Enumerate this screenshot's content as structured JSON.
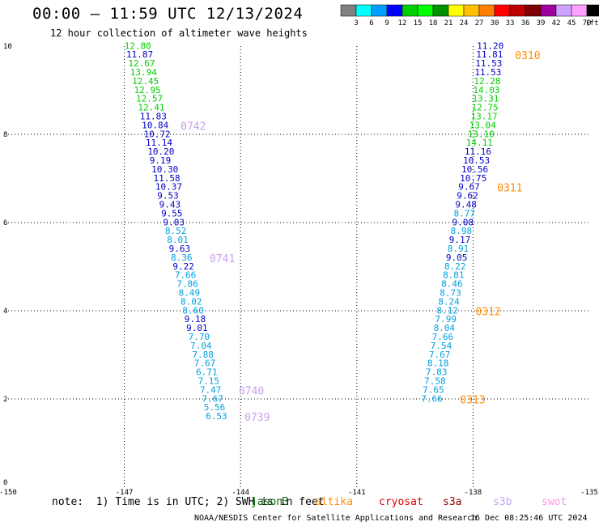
{
  "header": {
    "title": "00:00 – 11:59 UTC 12/13/2024",
    "subtitle": "12 hour collection of altimeter wave heights"
  },
  "colorbar": {
    "labels": [
      "3",
      "6",
      "9",
      "12",
      "15",
      "18",
      "21",
      "24",
      "27",
      "30",
      "33",
      "36",
      "39",
      "42",
      "45",
      "70"
    ],
    "unit": "(ft)",
    "colors": [
      "#808080",
      "#00ffff",
      "#00a0ff",
      "#0000ff",
      "#00d000",
      "#00ff00",
      "#009000",
      "#ffff00",
      "#ffc000",
      "#ff8000",
      "#ff0000",
      "#c00000",
      "#800000",
      "#a000a0",
      "#d0a0ff",
      "#ffa0ff",
      "#000000"
    ]
  },
  "footer": {
    "note": "note:  1) Time is in UTC; 2) SWH is in feet",
    "credit": "NOAA/NESDIS Center for Satellite Applications and Research",
    "timestamp": "16 Dec 08:25:46 UTC 2024",
    "satellites": [
      {
        "name": "jason3",
        "color": "#006400"
      },
      {
        "name": "altika",
        "color": "#ff8c00"
      },
      {
        "name": "cryosat",
        "color": "#e00000"
      },
      {
        "name": "s3a",
        "color": "#8b0000"
      },
      {
        "name": "s3b",
        "color": "#c8a0f0"
      },
      {
        "name": "swot",
        "color": "#ff90e0"
      }
    ]
  },
  "chart_data": {
    "type": "scatter",
    "xlim": [
      -150,
      -135
    ],
    "ylim": [
      0,
      10
    ],
    "x_ticks": [
      "-150",
      "-147",
      "-144",
      "-141",
      "-138",
      "-135"
    ],
    "y_ticks": [
      "0",
      "2",
      "4",
      "6",
      "8",
      "10"
    ],
    "grid": true,
    "tracks": [
      {
        "label_style": "west",
        "points": [
          {
            "x": -147.0,
            "y": 9.94,
            "v": "12.80",
            "c": "#00d000"
          },
          {
            "x": -146.95,
            "y": 9.74,
            "v": "11.87",
            "c": "#0000c8"
          },
          {
            "x": -146.9,
            "y": 9.54,
            "v": "12.67",
            "c": "#00d000"
          },
          {
            "x": -146.85,
            "y": 9.34,
            "v": "13.94",
            "c": "#00d000"
          },
          {
            "x": -146.8,
            "y": 9.14,
            "v": "12.45",
            "c": "#00d000"
          },
          {
            "x": -146.75,
            "y": 8.94,
            "v": "12.95",
            "c": "#00d000"
          },
          {
            "x": -146.7,
            "y": 8.74,
            "v": "12.57",
            "c": "#00d000"
          },
          {
            "x": -146.65,
            "y": 8.54,
            "v": "12.41",
            "c": "#00d000"
          },
          {
            "x": -146.6,
            "y": 8.34,
            "v": "11.83",
            "c": "#0000c8"
          },
          {
            "x": -146.55,
            "y": 8.14,
            "v": "10.84",
            "c": "#0000c8"
          },
          {
            "x": -146.5,
            "y": 7.94,
            "v": "10.72",
            "c": "#0000c8"
          },
          {
            "x": -146.45,
            "y": 7.74,
            "v": "11.14",
            "c": "#0000c8"
          },
          {
            "x": -146.4,
            "y": 7.54,
            "v": "10.20",
            "c": "#0000c8"
          },
          {
            "x": -146.35,
            "y": 7.34,
            "v": "9.19",
            "c": "#0000c8"
          },
          {
            "x": -146.3,
            "y": 7.14,
            "v": "10.30",
            "c": "#0000c8"
          },
          {
            "x": -146.25,
            "y": 6.94,
            "v": "11.58",
            "c": "#0000c8"
          },
          {
            "x": -146.2,
            "y": 6.74,
            "v": "10.37",
            "c": "#0000c8"
          },
          {
            "x": -146.15,
            "y": 6.54,
            "v": "9.53",
            "c": "#0000c8"
          },
          {
            "x": -146.1,
            "y": 6.34,
            "v": "9.43",
            "c": "#0000c8"
          },
          {
            "x": -146.05,
            "y": 6.14,
            "v": "9.55",
            "c": "#0000c8"
          },
          {
            "x": -146.0,
            "y": 5.94,
            "v": "9.03",
            "c": "#0000c8"
          },
          {
            "x": -145.95,
            "y": 5.74,
            "v": "8.52",
            "c": "#00a0e0"
          },
          {
            "x": -145.9,
            "y": 5.54,
            "v": "8.01",
            "c": "#00a0e0"
          },
          {
            "x": -145.85,
            "y": 5.34,
            "v": "9.63",
            "c": "#0000c8"
          },
          {
            "x": -145.8,
            "y": 5.14,
            "v": "8.36",
            "c": "#00a0e0"
          },
          {
            "x": -145.75,
            "y": 4.94,
            "v": "9.22",
            "c": "#0000c8"
          },
          {
            "x": -145.7,
            "y": 4.74,
            "v": "7.66",
            "c": "#00a0e0"
          },
          {
            "x": -145.65,
            "y": 4.54,
            "v": "7.86",
            "c": "#00a0e0"
          },
          {
            "x": -145.6,
            "y": 4.34,
            "v": "8.49",
            "c": "#00a0e0"
          },
          {
            "x": -145.55,
            "y": 4.14,
            "v": "8.02",
            "c": "#00a0e0"
          },
          {
            "x": -145.5,
            "y": 3.94,
            "v": "8.60",
            "c": "#00a0e0"
          },
          {
            "x": -145.45,
            "y": 3.74,
            "v": "9.18",
            "c": "#0000c8"
          },
          {
            "x": -145.4,
            "y": 3.54,
            "v": "9.01",
            "c": "#0000c8"
          },
          {
            "x": -145.35,
            "y": 3.34,
            "v": "7.70",
            "c": "#00a0e0"
          },
          {
            "x": -145.3,
            "y": 3.14,
            "v": "7.04",
            "c": "#00a0e0"
          },
          {
            "x": -145.25,
            "y": 2.94,
            "v": "7.88",
            "c": "#00a0e0"
          },
          {
            "x": -145.2,
            "y": 2.74,
            "v": "7.67",
            "c": "#00a0e0"
          },
          {
            "x": -145.15,
            "y": 2.54,
            "v": "6.71",
            "c": "#00a0e0"
          },
          {
            "x": -145.1,
            "y": 2.34,
            "v": "7.15",
            "c": "#00a0e0"
          },
          {
            "x": -145.05,
            "y": 2.14,
            "v": "7.47",
            "c": "#00a0e0"
          },
          {
            "x": -145.0,
            "y": 1.94,
            "v": "7.67",
            "c": "#00a0e0"
          },
          {
            "x": -144.95,
            "y": 1.74,
            "v": "5.56",
            "c": "#00a0e0"
          },
          {
            "x": -144.9,
            "y": 1.54,
            "v": "6.53",
            "c": "#00a0e0"
          }
        ],
        "time_labels": [
          {
            "text": "0742",
            "at": 9
          },
          {
            "text": "0741",
            "at": 24
          },
          {
            "text": "0740",
            "at": 39
          },
          {
            "text": "0739",
            "at": 42
          }
        ]
      },
      {
        "label_style": "east",
        "points": [
          {
            "x": -137.9,
            "y": 9.94,
            "v": "11.20",
            "c": "#0000c8"
          },
          {
            "x": -137.92,
            "y": 9.74,
            "v": "11.81",
            "c": "#0000c8"
          },
          {
            "x": -137.94,
            "y": 9.54,
            "v": "11.53",
            "c": "#0000c8"
          },
          {
            "x": -137.96,
            "y": 9.34,
            "v": "11.53",
            "c": "#0000c8"
          },
          {
            "x": -137.98,
            "y": 9.14,
            "v": "12.28",
            "c": "#00d000"
          },
          {
            "x": -138.0,
            "y": 8.94,
            "v": "14.03",
            "c": "#00d000"
          },
          {
            "x": -138.02,
            "y": 8.74,
            "v": "13.31",
            "c": "#00d000"
          },
          {
            "x": -138.04,
            "y": 8.54,
            "v": "12.75",
            "c": "#00d000"
          },
          {
            "x": -138.06,
            "y": 8.34,
            "v": "13.17",
            "c": "#00d000"
          },
          {
            "x": -138.1,
            "y": 8.14,
            "v": "13.04",
            "c": "#00d000"
          },
          {
            "x": -138.14,
            "y": 7.94,
            "v": "13.10",
            "c": "#00d000"
          },
          {
            "x": -138.18,
            "y": 7.74,
            "v": "14.11",
            "c": "#00d000"
          },
          {
            "x": -138.22,
            "y": 7.54,
            "v": "11.16",
            "c": "#0000c8"
          },
          {
            "x": -138.26,
            "y": 7.34,
            "v": "10.53",
            "c": "#0000c8"
          },
          {
            "x": -138.3,
            "y": 7.14,
            "v": "10.56",
            "c": "#0000c8"
          },
          {
            "x": -138.34,
            "y": 6.94,
            "v": "10.75",
            "c": "#0000c8"
          },
          {
            "x": -138.38,
            "y": 6.74,
            "v": "9.67",
            "c": "#0000c8"
          },
          {
            "x": -138.42,
            "y": 6.54,
            "v": "9.62",
            "c": "#0000c8"
          },
          {
            "x": -138.46,
            "y": 6.34,
            "v": "9.48",
            "c": "#0000c8"
          },
          {
            "x": -138.5,
            "y": 6.14,
            "v": "8.77",
            "c": "#00a0e0"
          },
          {
            "x": -138.54,
            "y": 5.94,
            "v": "9.08",
            "c": "#0000c8"
          },
          {
            "x": -138.58,
            "y": 5.74,
            "v": "8.98",
            "c": "#00a0e0"
          },
          {
            "x": -138.62,
            "y": 5.54,
            "v": "9.17",
            "c": "#0000c8"
          },
          {
            "x": -138.66,
            "y": 5.34,
            "v": "8.91",
            "c": "#00a0e0"
          },
          {
            "x": -138.7,
            "y": 5.14,
            "v": "9.05",
            "c": "#0000c8"
          },
          {
            "x": -138.74,
            "y": 4.94,
            "v": "8.22",
            "c": "#00a0e0"
          },
          {
            "x": -138.78,
            "y": 4.74,
            "v": "8.81",
            "c": "#00a0e0"
          },
          {
            "x": -138.82,
            "y": 4.54,
            "v": "8.46",
            "c": "#00a0e0"
          },
          {
            "x": -138.86,
            "y": 4.34,
            "v": "8.73",
            "c": "#00a0e0"
          },
          {
            "x": -138.9,
            "y": 4.14,
            "v": "8.24",
            "c": "#00a0e0"
          },
          {
            "x": -138.94,
            "y": 3.94,
            "v": "8.12",
            "c": "#00a0e0"
          },
          {
            "x": -138.98,
            "y": 3.74,
            "v": "7.99",
            "c": "#00a0e0"
          },
          {
            "x": -139.02,
            "y": 3.54,
            "v": "8.04",
            "c": "#00a0e0"
          },
          {
            "x": -139.06,
            "y": 3.34,
            "v": "7.66",
            "c": "#00a0e0"
          },
          {
            "x": -139.1,
            "y": 3.14,
            "v": "7.54",
            "c": "#00a0e0"
          },
          {
            "x": -139.14,
            "y": 2.94,
            "v": "7.67",
            "c": "#00a0e0"
          },
          {
            "x": -139.18,
            "y": 2.74,
            "v": "8.18",
            "c": "#00a0e0"
          },
          {
            "x": -139.22,
            "y": 2.54,
            "v": "7.83",
            "c": "#00a0e0"
          },
          {
            "x": -139.26,
            "y": 2.34,
            "v": "7.58",
            "c": "#00a0e0"
          },
          {
            "x": -139.3,
            "y": 2.14,
            "v": "7.65",
            "c": "#00a0e0"
          },
          {
            "x": -139.34,
            "y": 1.94,
            "v": "7.66",
            "c": "#00a0e0"
          }
        ],
        "time_labels": [
          {
            "text": "0310",
            "at": 1
          },
          {
            "text": "0311",
            "at": 16
          },
          {
            "text": "0312",
            "at": 30
          },
          {
            "text": "0313",
            "at": 40
          }
        ]
      }
    ],
    "time_label_colors": {
      "west": "#c8a0f0",
      "east": "#ff8c00"
    }
  }
}
